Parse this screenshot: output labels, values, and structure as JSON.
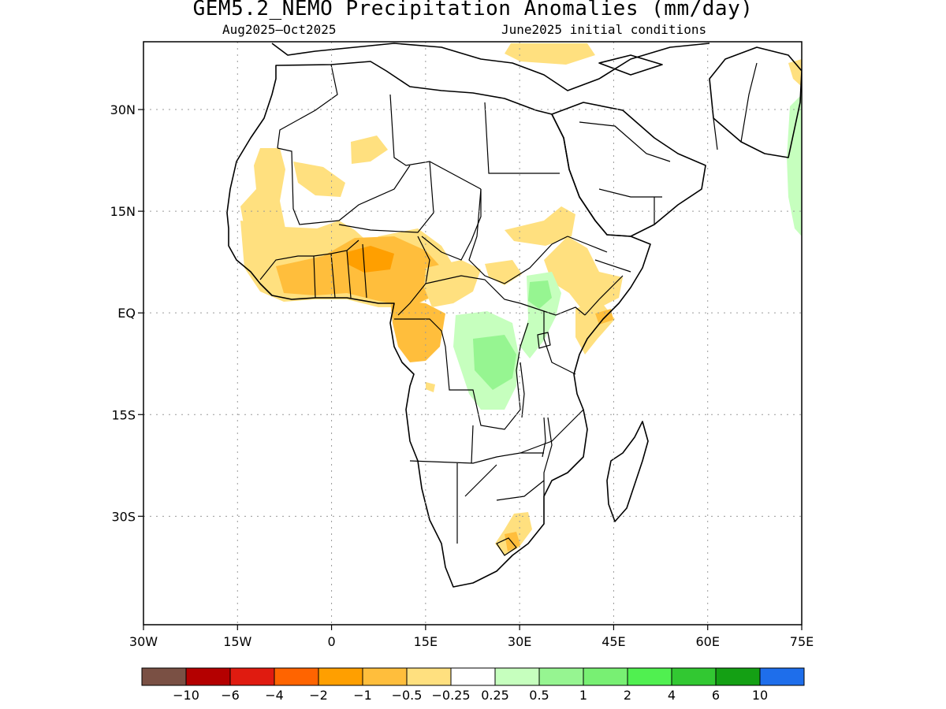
{
  "title": "GEM5.2_NEMO Precipitation Anomalies (mm/day)",
  "subtitle_left": "Aug2025–Oct2025",
  "subtitle_right": "June2025 initial conditions",
  "map": {
    "lon_range": [
      -30,
      75
    ],
    "lat_range": [
      -46,
      40
    ],
    "lon_ticks": [
      {
        "value": -30,
        "label": "30W"
      },
      {
        "value": -15,
        "label": "15W"
      },
      {
        "value": 0,
        "label": "0"
      },
      {
        "value": 15,
        "label": "15E"
      },
      {
        "value": 30,
        "label": "30E"
      },
      {
        "value": 45,
        "label": "45E"
      },
      {
        "value": 60,
        "label": "60E"
      },
      {
        "value": 75,
        "label": "75E"
      }
    ],
    "lat_ticks": [
      {
        "value": 30,
        "label": "30N"
      },
      {
        "value": 15,
        "label": "15N"
      },
      {
        "value": 0,
        "label": "EQ"
      },
      {
        "value": -15,
        "label": "15S"
      },
      {
        "value": -30,
        "label": "30S"
      }
    ],
    "grid": "dotted"
  },
  "colorbar": {
    "colors": [
      "#7a5044",
      "#b40000",
      "#e01b10",
      "#ff6400",
      "#ff9f00",
      "#ffbe3c",
      "#ffe07f",
      "#ffffff",
      "#c6ffbe",
      "#96f591",
      "#78f073",
      "#50f050",
      "#32c832",
      "#14a014",
      "#1e6eeb"
    ],
    "labels": [
      "−10",
      "−6",
      "−4",
      "−2",
      "−1",
      "−0.5",
      "−0.25",
      "0.25",
      "0.5",
      "1",
      "2",
      "4",
      "6",
      "10"
    ]
  }
}
